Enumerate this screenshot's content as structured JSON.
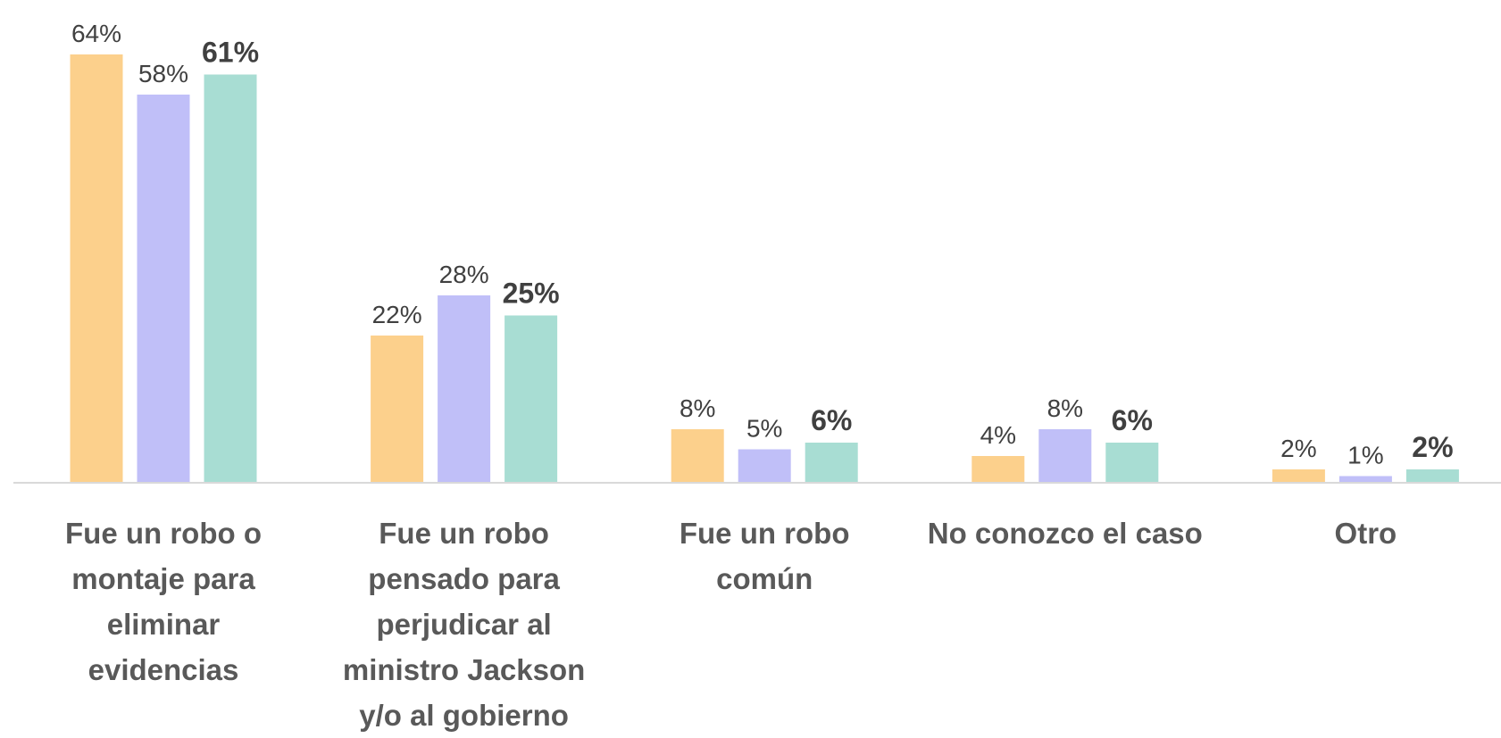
{
  "chart_data": {
    "type": "bar",
    "categories": [
      "Fue un robo o montaje para eliminar evidencias",
      "Fue un robo pensado para perjudicar al ministro Jackson y/o al gobierno",
      "Fue un robo común",
      "No conozco el caso",
      "Otro"
    ],
    "series": [
      {
        "color": "#fcd08c",
        "values": [
          64,
          22,
          8,
          4,
          2
        ],
        "value_labels": [
          "64%",
          "22%",
          "8%",
          "4%",
          "2%"
        ]
      },
      {
        "color": "#c0bff8",
        "values": [
          58,
          28,
          5,
          8,
          1
        ],
        "value_labels": [
          "58%",
          "28%",
          "5%",
          "8%",
          "1%"
        ]
      },
      {
        "color": "#a8ddd3",
        "values": [
          61,
          25,
          6,
          6,
          2
        ],
        "value_labels": [
          "61%",
          "25%",
          "6%",
          "6%",
          "2%"
        ]
      }
    ]
  }
}
